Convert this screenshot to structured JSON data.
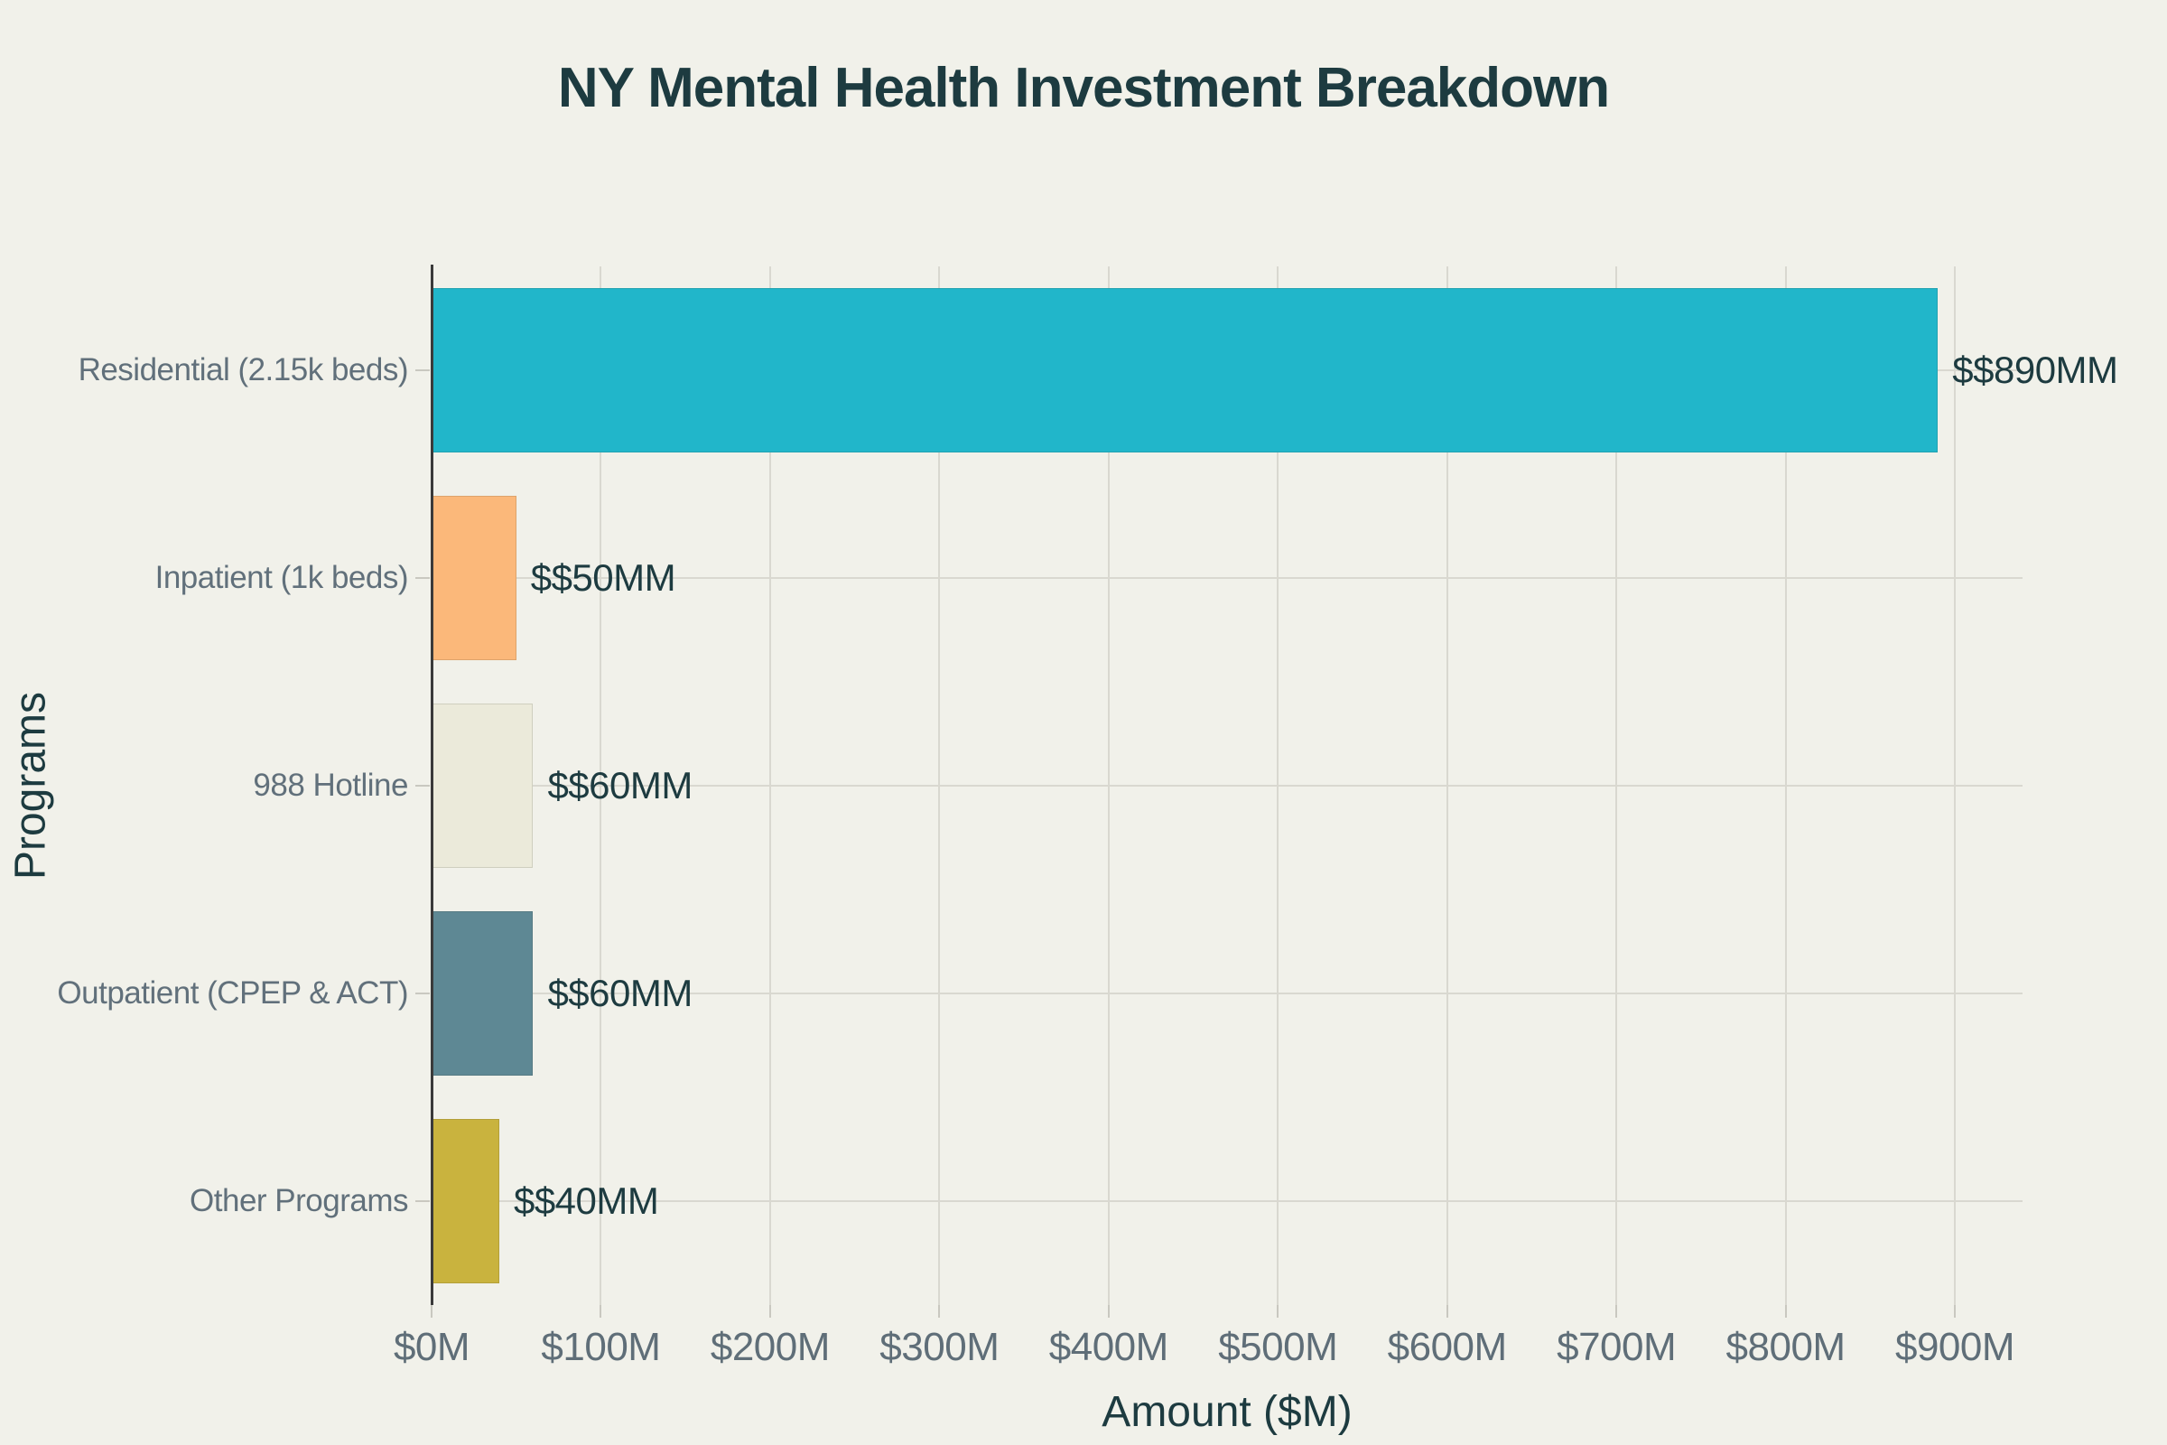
{
  "page": {
    "background": "#f1f1ea"
  },
  "chart_data": {
    "type": "bar",
    "orientation": "horizontal",
    "title": "NY Mental Health Investment Breakdown",
    "xlabel": "Amount ($M)",
    "ylabel": "Programs",
    "xlim": [
      0,
      940
    ],
    "grid": true,
    "legend": false,
    "categories": [
      "Residential (2.15k beds)",
      "Inpatient (1k beds)",
      "988 Hotline",
      "Outpatient (CPEP & ACT)",
      "Other Programs"
    ],
    "values": [
      890,
      50,
      60,
      60,
      40
    ],
    "value_labels": [
      "$$890MM",
      "$$50MM",
      "$$60MM",
      "$$60MM",
      "$$40MM"
    ],
    "bar_colors": [
      "#21b6ca",
      "#fbb87a",
      "#ebeada",
      "#5e8894",
      "#c9b33e"
    ],
    "x_ticks": [
      {
        "value": 0,
        "label": "$0M"
      },
      {
        "value": 100,
        "label": "$100M"
      },
      {
        "value": 200,
        "label": "$200M"
      },
      {
        "value": 300,
        "label": "$300M"
      },
      {
        "value": 400,
        "label": "$400M"
      },
      {
        "value": 500,
        "label": "$500M"
      },
      {
        "value": 600,
        "label": "$600M"
      },
      {
        "value": 700,
        "label": "$700M"
      },
      {
        "value": 800,
        "label": "$800M"
      },
      {
        "value": 900,
        "label": "$900M"
      }
    ],
    "colors": {
      "background": "#f1f1ea",
      "title_text": "#1d3b40",
      "value_label_text": "#1d3b40",
      "axis_title_text": "#1d3b40",
      "tick_label_text": "#5f6e78",
      "category_label_text": "#61707b",
      "gridline": "#d9d8d0",
      "zeroline": "#3a3a3a",
      "tick_mark": "#c9c8c0"
    }
  }
}
